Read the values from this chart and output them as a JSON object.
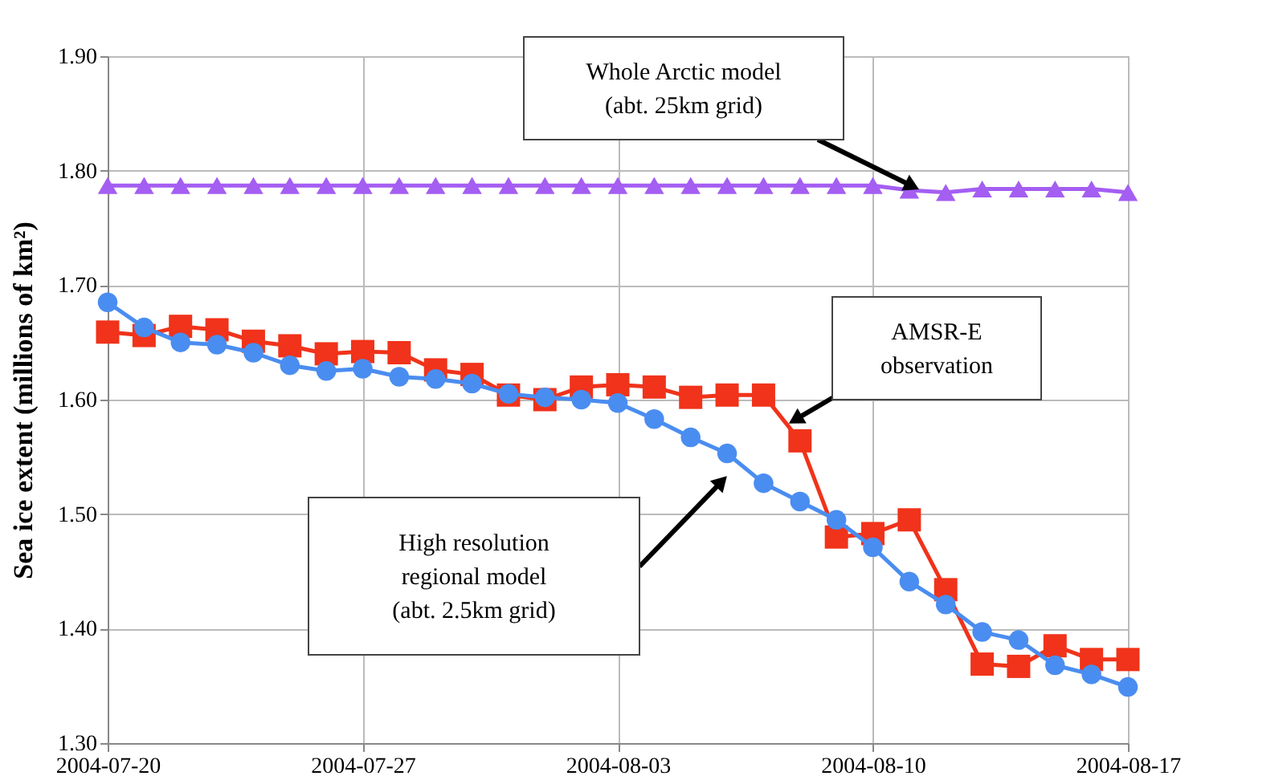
{
  "chart_data": {
    "type": "line",
    "ylabel": "Sea ice extent (millions of km²)",
    "x": [
      "2004-07-20",
      "2004-07-21",
      "2004-07-22",
      "2004-07-23",
      "2004-07-24",
      "2004-07-25",
      "2004-07-26",
      "2004-07-27",
      "2004-07-28",
      "2004-07-29",
      "2004-07-30",
      "2004-07-31",
      "2004-08-01",
      "2004-08-02",
      "2004-08-03",
      "2004-08-04",
      "2004-08-05",
      "2004-08-06",
      "2004-08-07",
      "2004-08-08",
      "2004-08-09",
      "2004-08-10",
      "2004-08-11",
      "2004-08-12",
      "2004-08-13",
      "2004-08-14",
      "2004-08-15",
      "2004-08-16",
      "2004-08-17"
    ],
    "series": [
      {
        "color": "#a45ef2",
        "marker": "triangle",
        "values": [
          1.787,
          1.787,
          1.787,
          1.787,
          1.787,
          1.787,
          1.787,
          1.787,
          1.787,
          1.787,
          1.787,
          1.787,
          1.787,
          1.787,
          1.787,
          1.787,
          1.787,
          1.787,
          1.787,
          1.787,
          1.787,
          1.787,
          1.783,
          1.781,
          1.784,
          1.784,
          1.784,
          1.784,
          1.781
        ]
      },
      {
        "color": "#f0331a",
        "marker": "square",
        "values": [
          1.659,
          1.656,
          1.664,
          1.661,
          1.651,
          1.647,
          1.64,
          1.642,
          1.641,
          1.626,
          1.622,
          1.604,
          1.6,
          1.611,
          1.613,
          1.611,
          1.602,
          1.604,
          1.604,
          1.564,
          1.48,
          1.483,
          1.495,
          1.434,
          1.369,
          1.367,
          1.385,
          1.373,
          1.373
        ]
      },
      {
        "color": "#4a8df0",
        "marker": "circle",
        "values": [
          1.685,
          1.663,
          1.65,
          1.648,
          1.641,
          1.63,
          1.625,
          1.627,
          1.62,
          1.618,
          1.614,
          1.605,
          1.602,
          1.6,
          1.597,
          1.583,
          1.567,
          1.553,
          1.527,
          1.511,
          1.495,
          1.471,
          1.441,
          1.421,
          1.397,
          1.39,
          1.368,
          1.36,
          1.349
        ]
      }
    ],
    "xlim": [
      "2004-07-20",
      "2004-08-17"
    ],
    "xticks": [
      "2004-07-20",
      "2004-07-27",
      "2004-08-03",
      "2004-08-10",
      "2004-08-17"
    ],
    "ylim": [
      1.3,
      1.9
    ],
    "yticks": [
      {
        "value": 1.3,
        "label": "1.30"
      },
      {
        "value": 1.4,
        "label": "1.40"
      },
      {
        "value": 1.5,
        "label": "1.50"
      },
      {
        "value": 1.6,
        "label": "1.60"
      },
      {
        "value": 1.7,
        "label": "1.70"
      },
      {
        "value": 1.8,
        "label": "1.80"
      },
      {
        "value": 1.9,
        "label": "1.90"
      }
    ],
    "grid": true,
    "annotations": [
      "Whole Arctic model\n(abt. 25km grid)",
      "AMSR-E\nobservation",
      "High resolution\nregional model\n(abt. 2.5km grid)"
    ]
  }
}
